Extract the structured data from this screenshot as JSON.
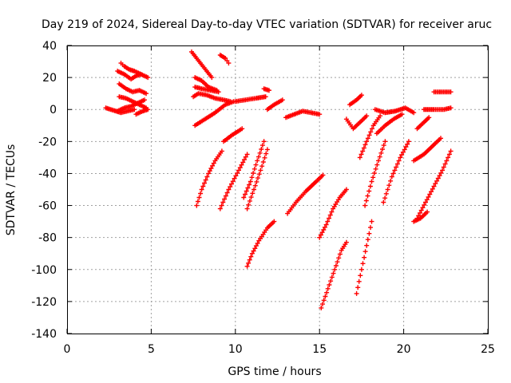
{
  "chart_data": {
    "type": "scatter",
    "title": "Day 219 of 2024, Sidereal Day-to-day VTEC variation (SDTVAR) for receiver aruc",
    "xlabel": "GPS time / hours",
    "ylabel": "SDTVAR / TECUs",
    "xlim": [
      0,
      25
    ],
    "ylim": [
      -140,
      40
    ],
    "xticks": [
      "0",
      "5",
      "10",
      "15",
      "20",
      "25"
    ],
    "yticks": [
      "-140",
      "-120",
      "-100",
      "-80",
      "-60",
      "-40",
      "-20",
      "0",
      "20",
      "40"
    ],
    "grid": true,
    "marker": "+",
    "marker_color": "#ff0000",
    "tracks": [
      [
        [
          2.3,
          1
        ],
        [
          2.6,
          0
        ],
        [
          2.9,
          -1
        ],
        [
          3.2,
          -2
        ],
        [
          3.6,
          -1
        ],
        [
          4.0,
          0
        ]
      ],
      [
        [
          3.0,
          -1
        ],
        [
          3.4,
          1
        ],
        [
          3.8,
          2
        ],
        [
          4.2,
          4
        ],
        [
          4.6,
          6
        ]
      ],
      [
        [
          3.1,
          8
        ],
        [
          3.5,
          7
        ],
        [
          3.9,
          5
        ],
        [
          4.3,
          3
        ],
        [
          4.7,
          1
        ]
      ],
      [
        [
          3.1,
          16
        ],
        [
          3.5,
          13
        ],
        [
          3.9,
          11
        ],
        [
          4.3,
          12
        ],
        [
          4.7,
          10
        ]
      ],
      [
        [
          3.0,
          24
        ],
        [
          3.4,
          22
        ],
        [
          3.8,
          19
        ],
        [
          4.1,
          21
        ],
        [
          4.4,
          22
        ]
      ],
      [
        [
          3.2,
          29
        ],
        [
          3.4,
          27
        ],
        [
          3.7,
          25
        ],
        [
          4.0,
          24
        ],
        [
          4.4,
          22
        ],
        [
          4.8,
          20
        ]
      ],
      [
        [
          4.1,
          -3
        ],
        [
          4.5,
          -1
        ],
        [
          4.8,
          0
        ]
      ],
      [
        [
          7.5,
          8
        ],
        [
          7.8,
          10
        ],
        [
          8.3,
          9
        ],
        [
          8.8,
          7
        ],
        [
          9.3,
          6
        ],
        [
          9.7,
          5
        ]
      ],
      [
        [
          7.6,
          14
        ],
        [
          8.0,
          13
        ],
        [
          8.5,
          12
        ],
        [
          9.0,
          11
        ]
      ],
      [
        [
          7.6,
          20
        ],
        [
          8.0,
          18
        ],
        [
          8.4,
          14
        ],
        [
          8.9,
          12
        ]
      ],
      [
        [
          7.4,
          36
        ],
        [
          7.7,
          32
        ],
        [
          8.0,
          28
        ],
        [
          8.3,
          24
        ],
        [
          8.6,
          20
        ]
      ],
      [
        [
          9.1,
          34
        ],
        [
          9.4,
          32
        ],
        [
          9.6,
          29
        ]
      ],
      [
        [
          7.6,
          -10
        ],
        [
          8.2,
          -6
        ],
        [
          8.8,
          -2
        ],
        [
          9.4,
          3
        ],
        [
          9.9,
          5
        ]
      ],
      [
        [
          10.0,
          5
        ],
        [
          10.6,
          6
        ],
        [
          11.2,
          7
        ],
        [
          11.8,
          8
        ]
      ],
      [
        [
          11.7,
          13
        ],
        [
          12.0,
          12
        ]
      ],
      [
        [
          11.9,
          0
        ],
        [
          12.3,
          3
        ],
        [
          12.8,
          6
        ]
      ],
      [
        [
          7.7,
          -60
        ],
        [
          8.0,
          -50
        ],
        [
          8.4,
          -40
        ],
        [
          8.8,
          -32
        ],
        [
          9.2,
          -26
        ]
      ],
      [
        [
          9.1,
          -62
        ],
        [
          9.6,
          -50
        ],
        [
          10.2,
          -38
        ],
        [
          10.7,
          -28
        ]
      ],
      [
        [
          9.3,
          -20
        ],
        [
          9.8,
          -16
        ],
        [
          10.4,
          -12
        ]
      ],
      [
        [
          10.5,
          -55
        ],
        [
          10.9,
          -45
        ],
        [
          11.3,
          -32
        ],
        [
          11.7,
          -20
        ]
      ],
      [
        [
          10.7,
          -62
        ],
        [
          11.1,
          -50
        ],
        [
          11.5,
          -38
        ],
        [
          11.9,
          -25
        ]
      ],
      [
        [
          10.7,
          -98
        ],
        [
          11.0,
          -90
        ],
        [
          11.4,
          -82
        ],
        [
          11.9,
          -74
        ],
        [
          12.3,
          -70
        ]
      ],
      [
        [
          13.1,
          -65
        ],
        [
          13.6,
          -58
        ],
        [
          14.2,
          -51
        ],
        [
          14.8,
          -45
        ],
        [
          15.2,
          -41
        ]
      ],
      [
        [
          13.0,
          -5
        ],
        [
          13.5,
          -3
        ],
        [
          14.0,
          -1
        ],
        [
          14.5,
          -2
        ],
        [
          15.0,
          -3
        ]
      ],
      [
        [
          15.0,
          -80
        ],
        [
          15.4,
          -72
        ],
        [
          15.8,
          -62
        ],
        [
          16.2,
          -55
        ],
        [
          16.6,
          -50
        ]
      ],
      [
        [
          15.1,
          -124
        ],
        [
          15.5,
          -112
        ],
        [
          15.9,
          -100
        ],
        [
          16.3,
          -88
        ],
        [
          16.6,
          -83
        ]
      ],
      [
        [
          16.8,
          3
        ],
        [
          17.2,
          6
        ],
        [
          17.5,
          9
        ]
      ],
      [
        [
          16.6,
          -6
        ],
        [
          17.0,
          -12
        ],
        [
          17.4,
          -8
        ],
        [
          17.8,
          -4
        ]
      ],
      [
        [
          17.2,
          -115
        ],
        [
          17.5,
          -100
        ],
        [
          17.8,
          -85
        ],
        [
          18.1,
          -70
        ]
      ],
      [
        [
          17.4,
          -30
        ],
        [
          17.8,
          -20
        ],
        [
          18.2,
          -10
        ],
        [
          18.6,
          -4
        ]
      ],
      [
        [
          17.7,
          -60
        ],
        [
          18.1,
          -45
        ],
        [
          18.5,
          -32
        ],
        [
          18.9,
          -20
        ]
      ],
      [
        [
          18.4,
          -15
        ],
        [
          18.9,
          -10
        ],
        [
          19.4,
          -6
        ],
        [
          19.9,
          -3
        ]
      ],
      [
        [
          18.8,
          -58
        ],
        [
          19.3,
          -42
        ],
        [
          19.8,
          -30
        ],
        [
          20.3,
          -20
        ]
      ],
      [
        [
          18.3,
          0
        ],
        [
          18.9,
          -2
        ],
        [
          19.5,
          -1
        ],
        [
          20.1,
          1
        ],
        [
          20.6,
          -2
        ]
      ],
      [
        [
          20.6,
          -70
        ],
        [
          21.0,
          -68
        ],
        [
          21.4,
          -64
        ]
      ],
      [
        [
          20.8,
          -68
        ],
        [
          21.3,
          -58
        ],
        [
          21.8,
          -48
        ],
        [
          22.3,
          -38
        ],
        [
          22.8,
          -26
        ]
      ],
      [
        [
          20.6,
          -32
        ],
        [
          21.2,
          -28
        ],
        [
          21.8,
          -22
        ],
        [
          22.2,
          -18
        ]
      ],
      [
        [
          20.8,
          -12
        ],
        [
          21.2,
          -8
        ],
        [
          21.5,
          -5
        ]
      ],
      [
        [
          21.2,
          0
        ],
        [
          21.8,
          0
        ],
        [
          22.4,
          0
        ],
        [
          22.8,
          1
        ]
      ],
      [
        [
          21.8,
          11
        ],
        [
          22.3,
          11
        ],
        [
          22.8,
          11
        ]
      ]
    ]
  }
}
